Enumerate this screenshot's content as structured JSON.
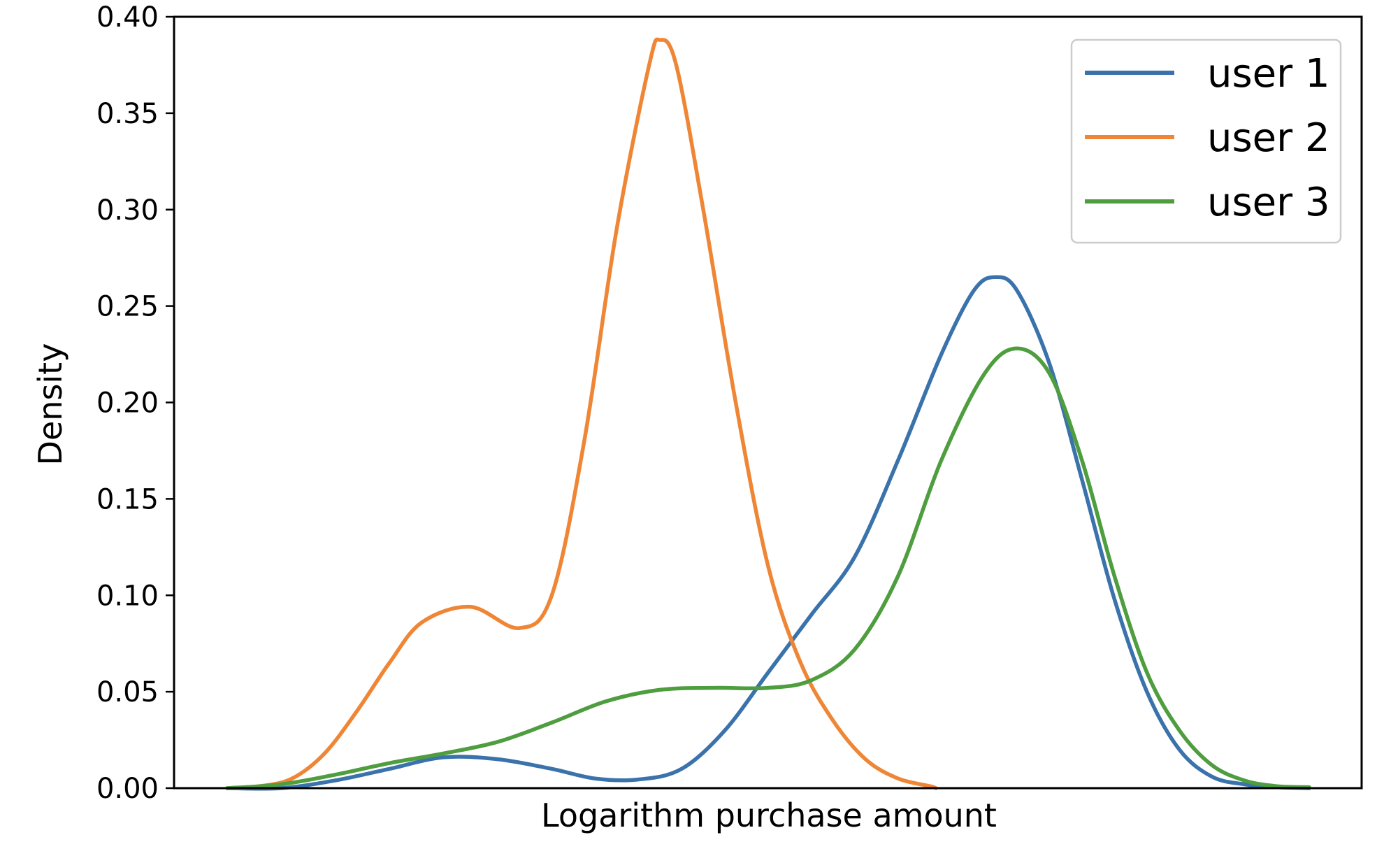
{
  "chart_data": {
    "type": "line",
    "xlabel": "Logarithm purchase amount",
    "ylabel": "Density",
    "ylim": [
      0,
      0.4
    ],
    "yticks": [
      "0.00",
      "0.05",
      "0.10",
      "0.15",
      "0.20",
      "0.25",
      "0.30",
      "0.35",
      "0.40"
    ],
    "xticks_visible": false,
    "grid": false,
    "legend_position": "top-right",
    "x_domain": [
      0,
      100
    ],
    "series": [
      {
        "name": "user 1",
        "color": "#3a72ab",
        "points": [
          [
            0,
            0
          ],
          [
            5,
            0
          ],
          [
            10,
            0.004
          ],
          [
            15,
            0.01
          ],
          [
            20,
            0.016
          ],
          [
            25,
            0.015
          ],
          [
            30,
            0.01
          ],
          [
            34,
            0.005
          ],
          [
            38,
            0.0045
          ],
          [
            42,
            0.01
          ],
          [
            46,
            0.03
          ],
          [
            50,
            0.06
          ],
          [
            54,
            0.09
          ],
          [
            58,
            0.12
          ],
          [
            62,
            0.17
          ],
          [
            66,
            0.225
          ],
          [
            69,
            0.258
          ],
          [
            71,
            0.265
          ],
          [
            73,
            0.258
          ],
          [
            76,
            0.22
          ],
          [
            79,
            0.16
          ],
          [
            82,
            0.098
          ],
          [
            85,
            0.05
          ],
          [
            88,
            0.02
          ],
          [
            91,
            0.006
          ],
          [
            94,
            0.002
          ],
          [
            97,
            0.0005
          ],
          [
            100,
            0
          ]
        ]
      },
      {
        "name": "user 2",
        "color": "#ef8636",
        "points": [
          [
            0,
            0
          ],
          [
            3,
            0.001
          ],
          [
            6,
            0.005
          ],
          [
            9,
            0.018
          ],
          [
            12,
            0.04
          ],
          [
            15,
            0.065
          ],
          [
            18,
            0.086
          ],
          [
            22.5,
            0.094
          ],
          [
            27,
            0.083
          ],
          [
            30,
            0.1
          ],
          [
            33,
            0.18
          ],
          [
            36,
            0.29
          ],
          [
            39,
            0.375
          ],
          [
            40,
            0.388
          ],
          [
            41.5,
            0.375
          ],
          [
            44,
            0.3
          ],
          [
            47,
            0.2
          ],
          [
            50,
            0.115
          ],
          [
            53,
            0.065
          ],
          [
            56,
            0.035
          ],
          [
            59,
            0.015
          ],
          [
            62,
            0.005
          ],
          [
            65,
            0.001
          ],
          [
            65.5,
            0
          ]
        ]
      },
      {
        "name": "user 3",
        "color": "#4e9d3e",
        "points": [
          [
            0,
            0
          ],
          [
            5,
            0.002
          ],
          [
            10,
            0.007
          ],
          [
            15,
            0.013
          ],
          [
            20,
            0.018
          ],
          [
            25,
            0.024
          ],
          [
            30,
            0.034
          ],
          [
            35,
            0.045
          ],
          [
            40,
            0.051
          ],
          [
            45,
            0.052
          ],
          [
            50,
            0.052
          ],
          [
            54,
            0.056
          ],
          [
            58,
            0.072
          ],
          [
            62,
            0.11
          ],
          [
            66,
            0.17
          ],
          [
            70,
            0.215
          ],
          [
            73,
            0.228
          ],
          [
            76,
            0.215
          ],
          [
            79,
            0.17
          ],
          [
            82,
            0.11
          ],
          [
            85,
            0.06
          ],
          [
            88,
            0.03
          ],
          [
            91,
            0.012
          ],
          [
            94,
            0.004
          ],
          [
            97,
            0.001
          ],
          [
            100,
            0.0005
          ]
        ]
      }
    ]
  }
}
